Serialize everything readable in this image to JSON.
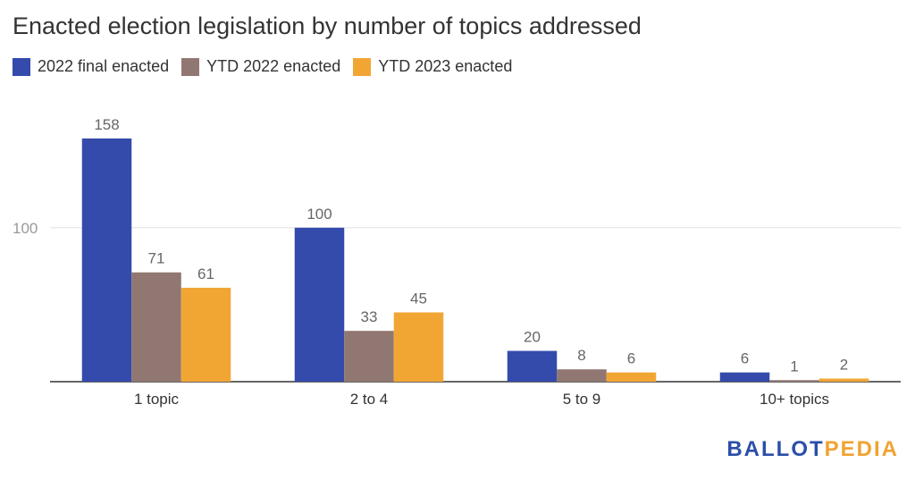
{
  "chart_data": {
    "type": "bar",
    "title": "Enacted election legislation by number of topics addressed",
    "categories": [
      "1 topic",
      "2 to 4",
      "5 to 9",
      "10+ topics"
    ],
    "series": [
      {
        "name": "2022 final enacted",
        "color": "#344bab",
        "values": [
          158,
          100,
          20,
          6
        ]
      },
      {
        "name": "YTD 2022 enacted",
        "color": "#917771",
        "values": [
          71,
          33,
          8,
          1
        ]
      },
      {
        "name": "YTD 2023 enacted",
        "color": "#f1a634",
        "values": [
          61,
          45,
          6,
          2
        ]
      }
    ],
    "yticks": [
      100
    ],
    "ylim": [
      0,
      180
    ],
    "grid": true,
    "legend_position": "top-left"
  },
  "brand": {
    "part1": "BALLOT",
    "part2": "PEDIA"
  }
}
